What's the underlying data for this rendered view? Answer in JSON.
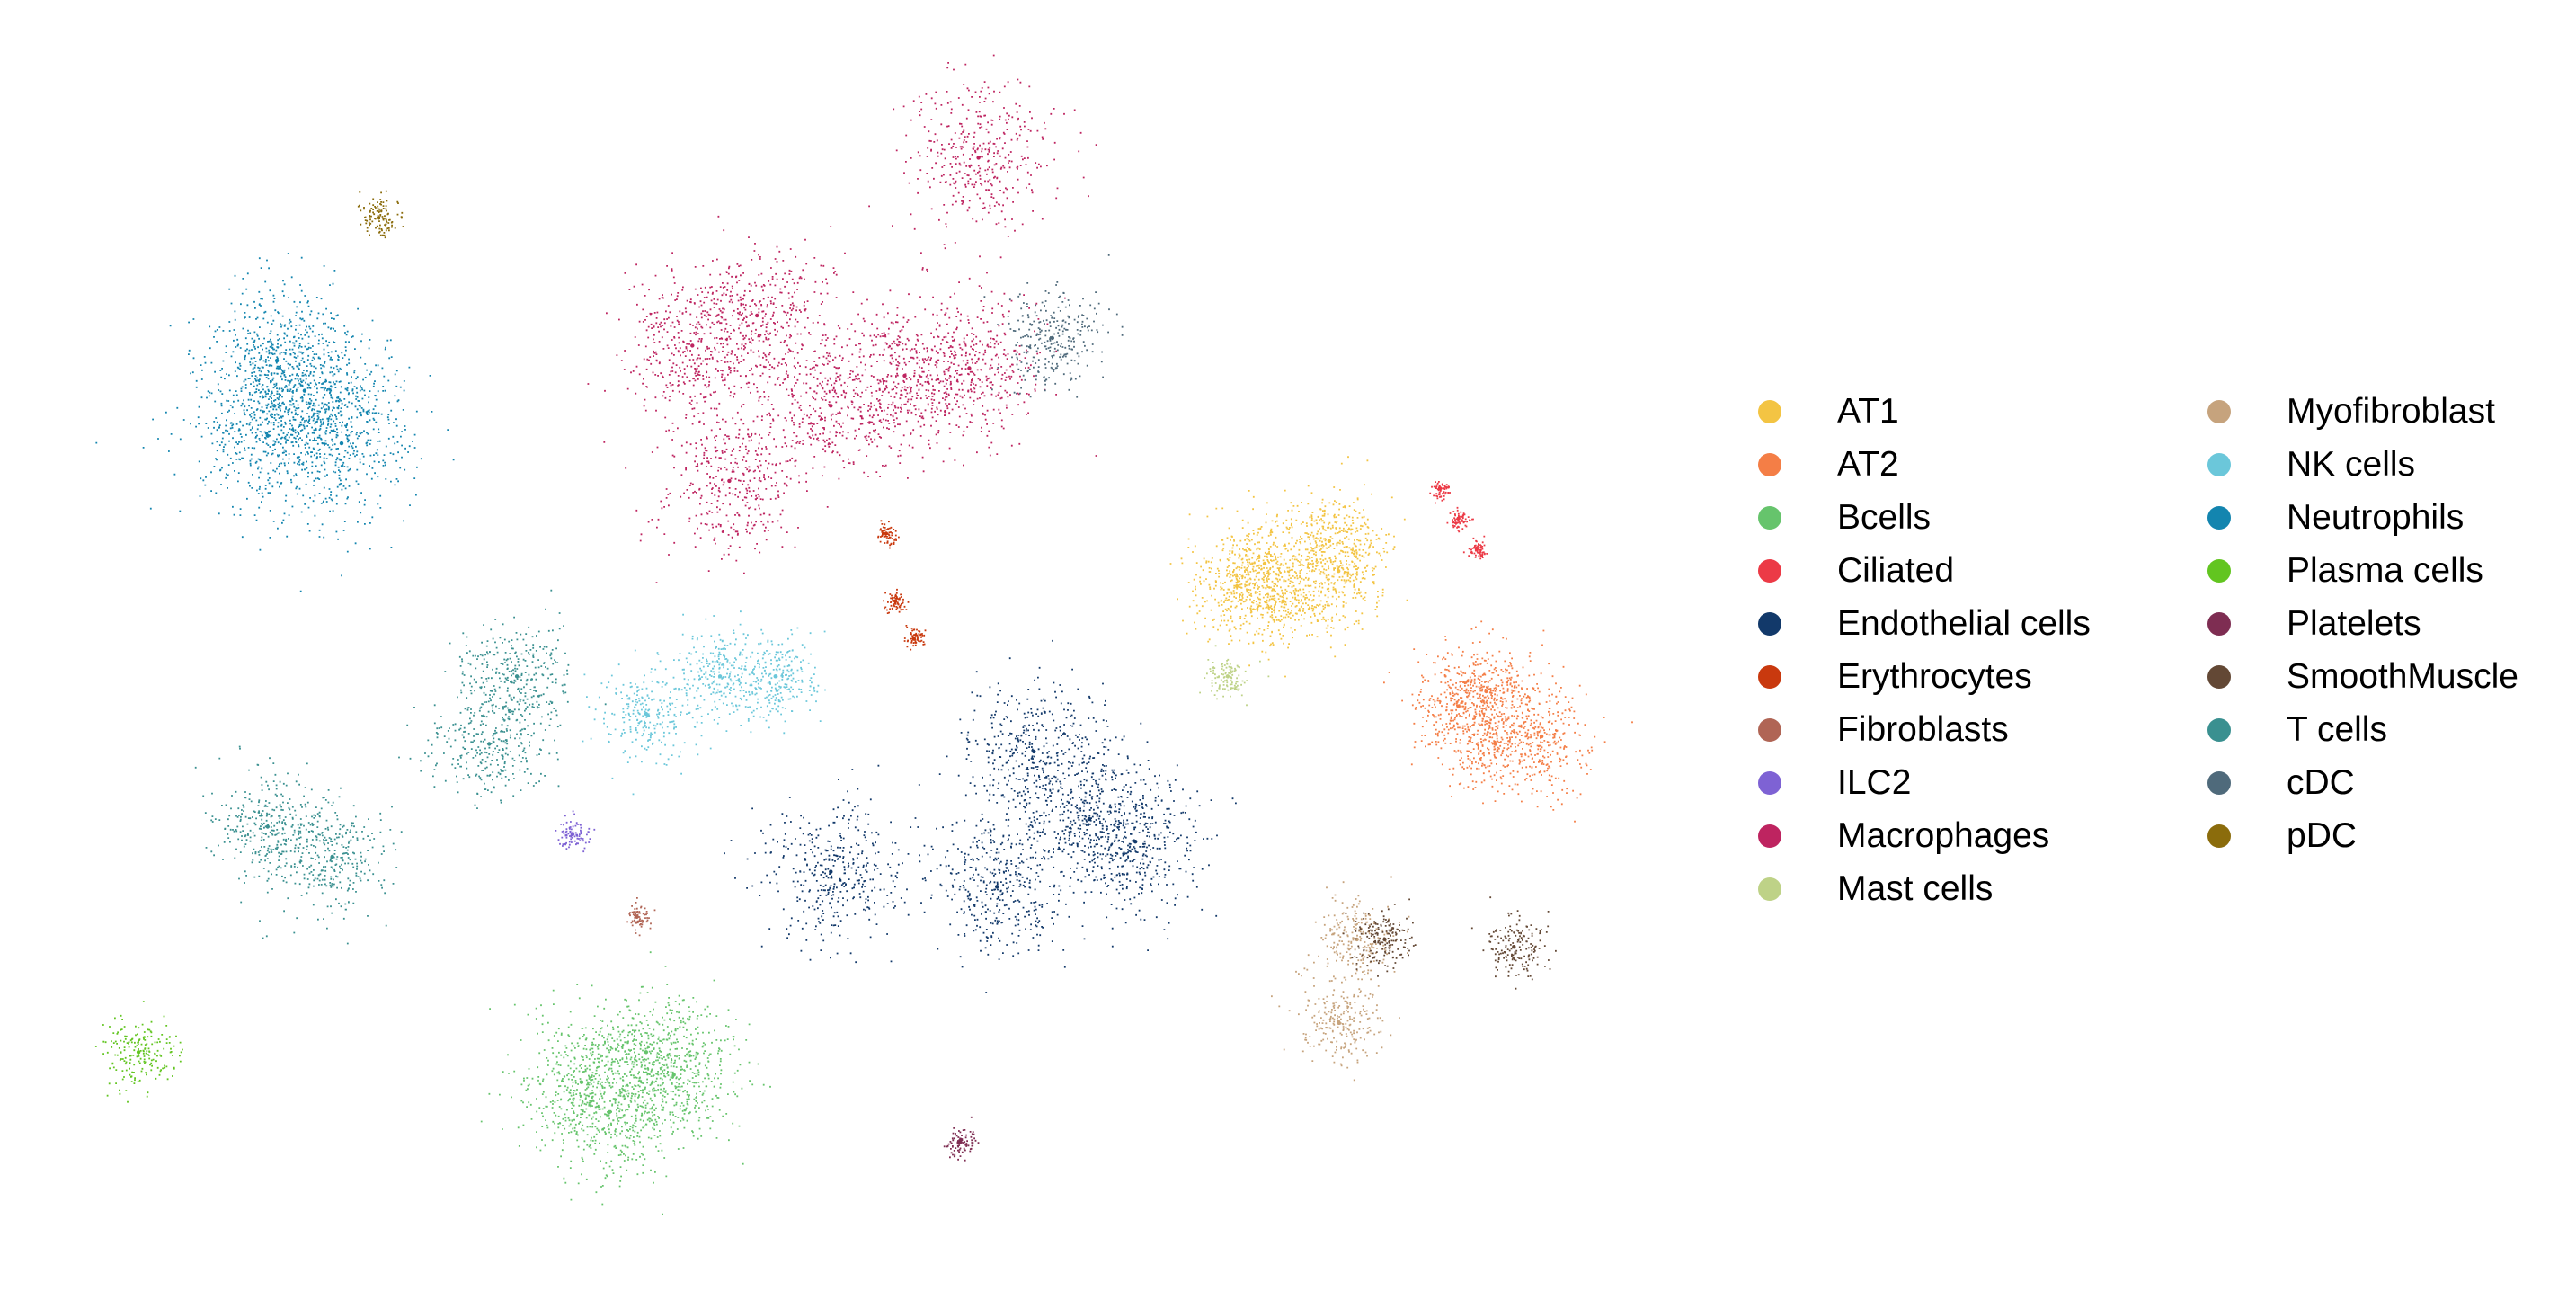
{
  "chart_data": {
    "type": "scatter",
    "title": "",
    "xlabel": "",
    "ylabel": "",
    "axes_visible": false,
    "grid": false,
    "legend_placement": "right",
    "legend_columns": 2,
    "series": [
      {
        "name": "AT1",
        "color": "#F3C443",
        "x": [
          13.4,
          14.4,
          13.9,
          13.7,
          14.5
        ],
        "y": [
          -2.4,
          -1.8,
          -2.6,
          -2.1,
          -2.2
        ],
        "spread": 0.5
      },
      {
        "name": "AT2",
        "color": "#F47E46",
        "x": [
          15.8,
          16.7,
          16.2,
          16.1
        ],
        "y": [
          -4.0,
          -4.4,
          -4.5,
          -3.8
        ],
        "spread": 0.5
      },
      {
        "name": "Bcells",
        "color": "#66C46C",
        "x": [
          6.3,
          7.3,
          6.6,
          7.0
        ],
        "y": [
          -9.0,
          -8.9,
          -9.4,
          -8.6
        ],
        "spread": 0.65
      },
      {
        "name": "Ciliated",
        "color": "#EC3A46",
        "x": [
          15.6,
          16.0,
          15.8
        ],
        "y": [
          -1.1,
          -1.9,
          -1.5
        ],
        "spread": 0.1
      },
      {
        "name": "Endothelial cells",
        "color": "#12396A",
        "x": [
          9.0,
          10.8,
          11.8,
          12.3,
          11.2
        ],
        "y": [
          -6.2,
          -6.4,
          -5.5,
          -5.8,
          -4.6
        ],
        "spread": 0.7
      },
      {
        "name": "Erythrocytes",
        "color": "#C9390E",
        "x": [
          9.6,
          9.7,
          9.9
        ],
        "y": [
          -1.7,
          -2.6,
          -3.1
        ],
        "spread": 0.1
      },
      {
        "name": "Fibroblasts",
        "color": "#B06555",
        "x": [
          6.9
        ],
        "y": [
          -6.8
        ],
        "spread": 0.12
      },
      {
        "name": "ILC2",
        "color": "#7E62D4",
        "x": [
          6.2
        ],
        "y": [
          -5.7
        ],
        "spread": 0.15
      },
      {
        "name": "Macrophages",
        "color": "#BE2460",
        "x": [
          9.0,
          8.2,
          7.5,
          10.6,
          9.8,
          10.5,
          7.9
        ],
        "y": [
          0.0,
          1.2,
          0.8,
          3.3,
          0.4,
          0.5,
          -1.0
        ],
        "spread": 0.7
      },
      {
        "name": "Mast cells",
        "color": "#BED287",
        "x": [
          13.3
        ],
        "y": [
          -3.6
        ],
        "spread": 0.2
      },
      {
        "name": "Myofibroblast",
        "color": "#C6A37D",
        "x": [
          14.5,
          14.7
        ],
        "y": [
          -8.2,
          -7.1
        ],
        "spread": 0.4
      },
      {
        "name": "NK cells",
        "color": "#6BC7DA",
        "x": [
          7.8,
          8.4,
          7.0
        ],
        "y": [
          -3.6,
          -3.6,
          -4.1
        ],
        "spread": 0.45
      },
      {
        "name": "Neutrophils",
        "color": "#1385AF",
        "x": [
          2.9,
          3.3,
          3.7,
          3.0
        ],
        "y": [
          -0.4,
          0.2,
          -0.5,
          0.6
        ],
        "spread": 0.75
      },
      {
        "name": "Plasma cells",
        "color": "#62C520",
        "x": [
          1.5
        ],
        "y": [
          -8.6
        ],
        "spread": 0.35
      },
      {
        "name": "Platelets",
        "color": "#7E2D52",
        "x": [
          10.4
        ],
        "y": [
          -9.8
        ],
        "spread": 0.15
      },
      {
        "name": "SmoothMuscle",
        "color": "#634835",
        "x": [
          16.4,
          15.0
        ],
        "y": [
          -7.2,
          -7.1
        ],
        "spread": 0.3
      },
      {
        "name": "T cells",
        "color": "#3A9090",
        "x": [
          2.9,
          3.6,
          5.3,
          5.6
        ],
        "y": [
          -5.6,
          -6.0,
          -4.5,
          -3.6
        ],
        "spread": 0.55
      },
      {
        "name": "cDC",
        "color": "#4F6A7B",
        "x": [
          11.4
        ],
        "y": [
          0.9
        ],
        "spread": 0.5
      },
      {
        "name": "pDC",
        "color": "#8B6C0C",
        "x": [
          4.1
        ],
        "y": [
          2.5
        ],
        "spread": 0.2
      }
    ]
  }
}
